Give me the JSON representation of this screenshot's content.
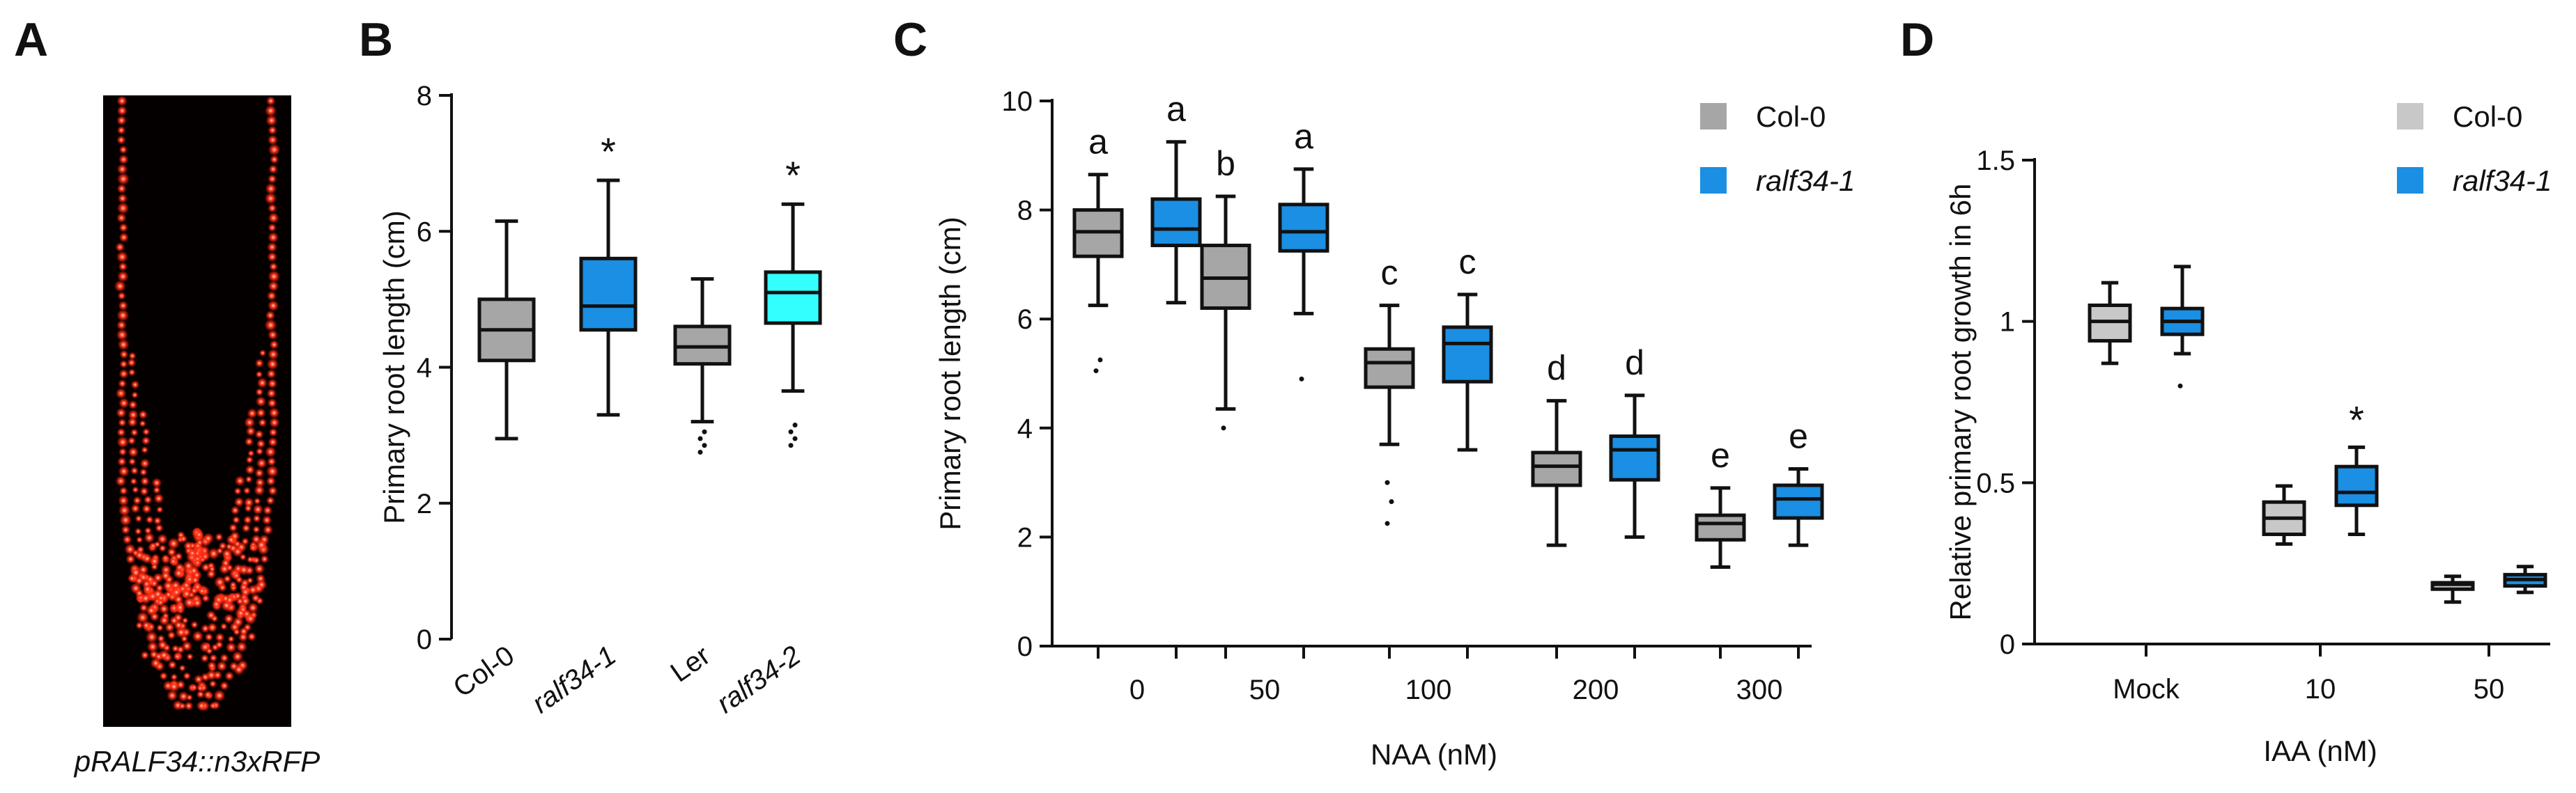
{
  "panels": {
    "A": {
      "label": "A",
      "caption": "pRALF34::n3xRFP"
    },
    "B": {
      "label": "B"
    },
    "C": {
      "label": "C"
    },
    "D": {
      "label": "D"
    }
  },
  "colors": {
    "col0": "#a6a6a6",
    "col0_light": "#c8c8c8",
    "ralf": "#1a8fe3",
    "ralf2": "#33ffff",
    "image_bg": "#050000",
    "nuclei": "#ff2a1a"
  },
  "chart_data": [
    {
      "panel": "B",
      "type": "box",
      "ylabel": "Primary root length (cm)",
      "ylim": [
        0,
        8
      ],
      "yticks": [
        0,
        2,
        4,
        6,
        8
      ],
      "categories": [
        "Col-0",
        "ralf34-1",
        "Ler",
        "ralf34-2"
      ],
      "italic_categories": [
        false,
        true,
        false,
        true
      ],
      "boxes": [
        {
          "category": "Col-0",
          "min": 2.95,
          "q1": 4.1,
          "median": 4.55,
          "q3": 5.0,
          "max": 6.15,
          "outliers": [],
          "color": "#a6a6a6",
          "mark": ""
        },
        {
          "category": "ralf34-1",
          "min": 3.3,
          "q1": 4.55,
          "median": 4.9,
          "q3": 5.6,
          "max": 6.75,
          "outliers": [],
          "color": "#1a8fe3",
          "mark": "*"
        },
        {
          "category": "Ler",
          "min": 3.2,
          "q1": 4.05,
          "median": 4.3,
          "q3": 4.6,
          "max": 5.3,
          "outliers": [
            2.75,
            2.85,
            2.95,
            3.05
          ],
          "color": "#a6a6a6",
          "mark": ""
        },
        {
          "category": "ralf34-2",
          "min": 3.65,
          "q1": 4.65,
          "median": 5.1,
          "q3": 5.4,
          "max": 6.4,
          "outliers": [
            2.85,
            2.95,
            3.05,
            3.15
          ],
          "color": "#33ffff",
          "mark": "*"
        }
      ]
    },
    {
      "panel": "C",
      "type": "box",
      "xlabel": "NAA (nM)",
      "ylabel": "Primary root length (cm)",
      "ylim": [
        0,
        10
      ],
      "yticks": [
        0,
        2,
        4,
        6,
        8,
        10
      ],
      "categories": [
        "0",
        "50",
        "100",
        "200",
        "300"
      ],
      "legend": {
        "placement": "top-right",
        "entries": [
          {
            "name": "Col-0",
            "color": "#a6a6a6",
            "italic": false
          },
          {
            "name": "ralf34-1",
            "color": "#1a8fe3",
            "italic": true
          }
        ]
      },
      "series": [
        {
          "name": "Col-0",
          "color": "#a6a6a6",
          "boxes": [
            {
              "min": 6.25,
              "q1": 7.15,
              "median": 7.6,
              "q3": 8.0,
              "max": 8.65,
              "outliers": [
                5.05,
                5.25
              ],
              "letter": "a"
            },
            {
              "min": 4.35,
              "q1": 6.2,
              "median": 6.75,
              "q3": 7.35,
              "max": 8.25,
              "outliers": [
                4.0
              ],
              "letter": "b"
            },
            {
              "min": 3.7,
              "q1": 4.75,
              "median": 5.2,
              "q3": 5.45,
              "max": 6.25,
              "outliers": [
                2.25,
                2.65,
                3.0
              ],
              "letter": "c"
            },
            {
              "min": 1.85,
              "q1": 2.95,
              "median": 3.3,
              "q3": 3.55,
              "max": 4.5,
              "outliers": [],
              "letter": "d"
            },
            {
              "min": 1.45,
              "q1": 1.95,
              "median": 2.25,
              "q3": 2.4,
              "max": 2.9,
              "outliers": [],
              "letter": "e"
            }
          ]
        },
        {
          "name": "ralf34-1",
          "color": "#1a8fe3",
          "boxes": [
            {
              "min": 6.3,
              "q1": 7.35,
              "median": 7.65,
              "q3": 8.2,
              "max": 9.25,
              "outliers": [],
              "letter": "a"
            },
            {
              "min": 6.1,
              "q1": 7.25,
              "median": 7.6,
              "q3": 8.1,
              "max": 8.75,
              "outliers": [
                4.9
              ],
              "letter": "a"
            },
            {
              "min": 3.6,
              "q1": 4.85,
              "median": 5.55,
              "q3": 5.85,
              "max": 6.45,
              "outliers": [],
              "letter": "c"
            },
            {
              "min": 2.0,
              "q1": 3.05,
              "median": 3.6,
              "q3": 3.85,
              "max": 4.6,
              "outliers": [],
              "letter": "d"
            },
            {
              "min": 1.85,
              "q1": 2.35,
              "median": 2.7,
              "q3": 2.95,
              "max": 3.25,
              "outliers": [],
              "letter": "e"
            }
          ]
        }
      ]
    },
    {
      "panel": "D",
      "type": "box",
      "xlabel": "IAA (nM)",
      "ylabel": "Relative primary root growth in 6h",
      "ylim": [
        0,
        1.5
      ],
      "yticks": [
        0,
        0.5,
        1,
        1.5
      ],
      "ytick_labels": [
        "0",
        "0.5",
        "1",
        "1.5"
      ],
      "categories": [
        "Mock",
        "10",
        "50"
      ],
      "legend": {
        "placement": "top-right",
        "entries": [
          {
            "name": "Col-0",
            "color": "#c8c8c8",
            "italic": false
          },
          {
            "name": "ralf34-1",
            "color": "#1a8fe3",
            "italic": true
          }
        ]
      },
      "series": [
        {
          "name": "Col-0",
          "color": "#c8c8c8",
          "boxes": [
            {
              "min": 0.87,
              "q1": 0.94,
              "median": 1.0,
              "q3": 1.05,
              "max": 1.12,
              "outliers": [],
              "mark": ""
            },
            {
              "min": 0.31,
              "q1": 0.34,
              "median": 0.39,
              "q3": 0.44,
              "max": 0.49,
              "outliers": [],
              "mark": ""
            },
            {
              "min": 0.13,
              "q1": 0.17,
              "median": 0.185,
              "q3": 0.19,
              "max": 0.21,
              "outliers": [],
              "mark": ""
            }
          ]
        },
        {
          "name": "ralf34-1",
          "color": "#1a8fe3",
          "boxes": [
            {
              "min": 0.9,
              "q1": 0.96,
              "median": 1.0,
              "q3": 1.04,
              "max": 1.17,
              "outliers": [
                0.8
              ],
              "mark": ""
            },
            {
              "min": 0.34,
              "q1": 0.43,
              "median": 0.47,
              "q3": 0.55,
              "max": 0.61,
              "outliers": [],
              "mark": "*"
            },
            {
              "min": 0.16,
              "q1": 0.18,
              "median": 0.2,
              "q3": 0.215,
              "max": 0.24,
              "outliers": [],
              "mark": ""
            }
          ]
        }
      ]
    }
  ]
}
